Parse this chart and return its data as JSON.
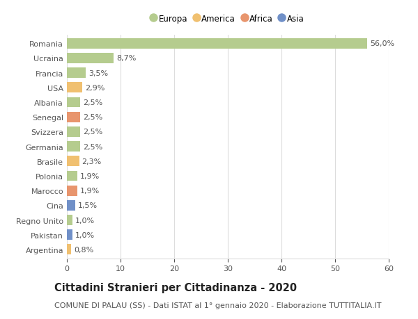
{
  "countries": [
    "Romania",
    "Ucraina",
    "Francia",
    "USA",
    "Albania",
    "Senegal",
    "Svizzera",
    "Germania",
    "Brasile",
    "Polonia",
    "Marocco",
    "Cina",
    "Regno Unito",
    "Pakistan",
    "Argentina"
  ],
  "values": [
    56.0,
    8.7,
    3.5,
    2.9,
    2.5,
    2.5,
    2.5,
    2.5,
    2.3,
    1.9,
    1.9,
    1.5,
    1.0,
    1.0,
    0.8
  ],
  "labels": [
    "56,0%",
    "8,7%",
    "3,5%",
    "2,9%",
    "2,5%",
    "2,5%",
    "2,5%",
    "2,5%",
    "2,3%",
    "1,9%",
    "1,9%",
    "1,5%",
    "1,0%",
    "1,0%",
    "0,8%"
  ],
  "categories": [
    "Europa",
    "America",
    "Africa",
    "Asia"
  ],
  "bar_colors": [
    "#b5cc8e",
    "#b5cc8e",
    "#b5cc8e",
    "#f0c070",
    "#b5cc8e",
    "#e8956d",
    "#b5cc8e",
    "#b5cc8e",
    "#f0c070",
    "#b5cc8e",
    "#e8956d",
    "#7090c8",
    "#b5cc8e",
    "#7090c8",
    "#f0c070"
  ],
  "legend_colors": [
    "#b5cc8e",
    "#f0c070",
    "#e8956d",
    "#7090c8"
  ],
  "title": "Cittadini Stranieri per Cittadinanza - 2020",
  "subtitle": "COMUNE DI PALAU (SS) - Dati ISTAT al 1° gennaio 2020 - Elaborazione TUTTITALIA.IT",
  "xlim": [
    0,
    60
  ],
  "xticks": [
    0,
    10,
    20,
    30,
    40,
    50,
    60
  ],
  "background_color": "#ffffff",
  "grid_color": "#dddddd",
  "title_fontsize": 10.5,
  "subtitle_fontsize": 8,
  "label_fontsize": 8,
  "tick_fontsize": 8,
  "legend_fontsize": 8.5
}
